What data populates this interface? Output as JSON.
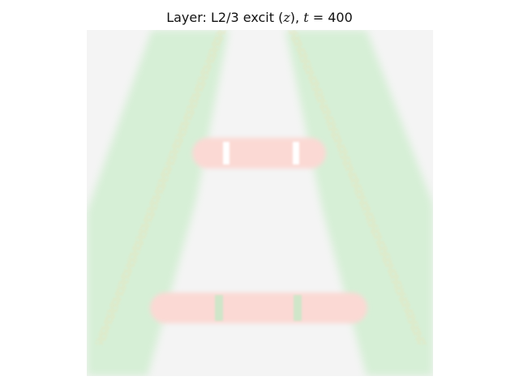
{
  "figure": {
    "title_prefix": "Layer: L2/3 excit (",
    "title_var": "z",
    "title_middle": "), ",
    "title_t": "t",
    "title_eq": " = 400"
  },
  "colors": {
    "background": "#f4f4f4",
    "stroke_green": "#d6efd6",
    "bar_red": "#fbd9d4",
    "dots_yellow": "#eae3b9",
    "tick_white": "#ffffff",
    "tick_green": "#cfe6c9"
  }
}
